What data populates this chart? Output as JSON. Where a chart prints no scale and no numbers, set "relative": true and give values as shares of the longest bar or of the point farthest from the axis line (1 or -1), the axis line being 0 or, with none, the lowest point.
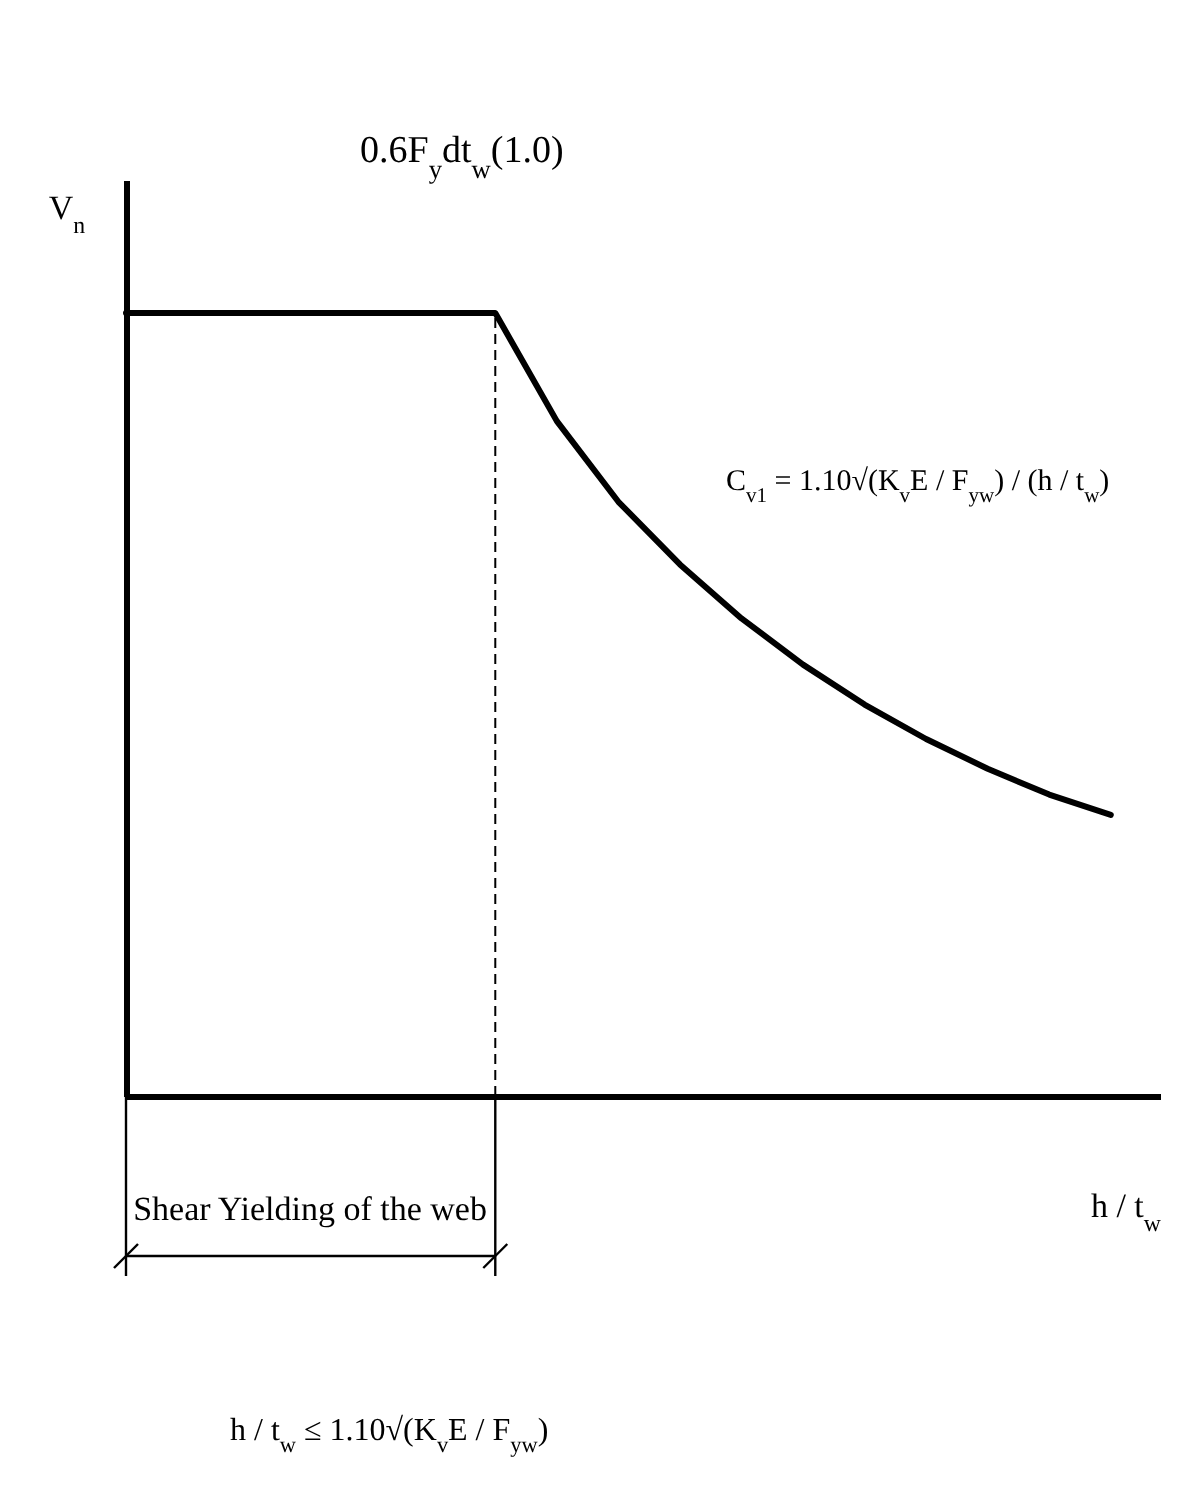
{
  "chart_data": {
    "type": "line",
    "relative": true,
    "xlabel": "h / t$_{w}$",
    "ylabel": "V$_{n}$",
    "categories": [
      null,
      null,
      null,
      null,
      null,
      null,
      null,
      null,
      null,
      null,
      null,
      null,
      null,
      null,
      null,
      null,
      null
    ],
    "series": [
      {
        "color": "#000000",
        "values": [
          1,
          1,
          1,
          1,
          1,
          1,
          1,
          0.862,
          0.759,
          0.679,
          0.61,
          0.551,
          0.5,
          0.456,
          0.418,
          0.385,
          0.359
        ]
      }
    ],
    "annotations": [
      "0.6F$_{y}$dt$_{w}$(1.0)",
      "C$_{v1}$ = 1.10√(K$_{v}$E / F$_{yw}$) / (h / t$_{w}$)",
      "Shear Yielding of the web",
      "h / t$_{w}$ ≤ 1.10√(K$_{v}$E / F$_{yw}$)"
    ],
    "grid": false
  }
}
